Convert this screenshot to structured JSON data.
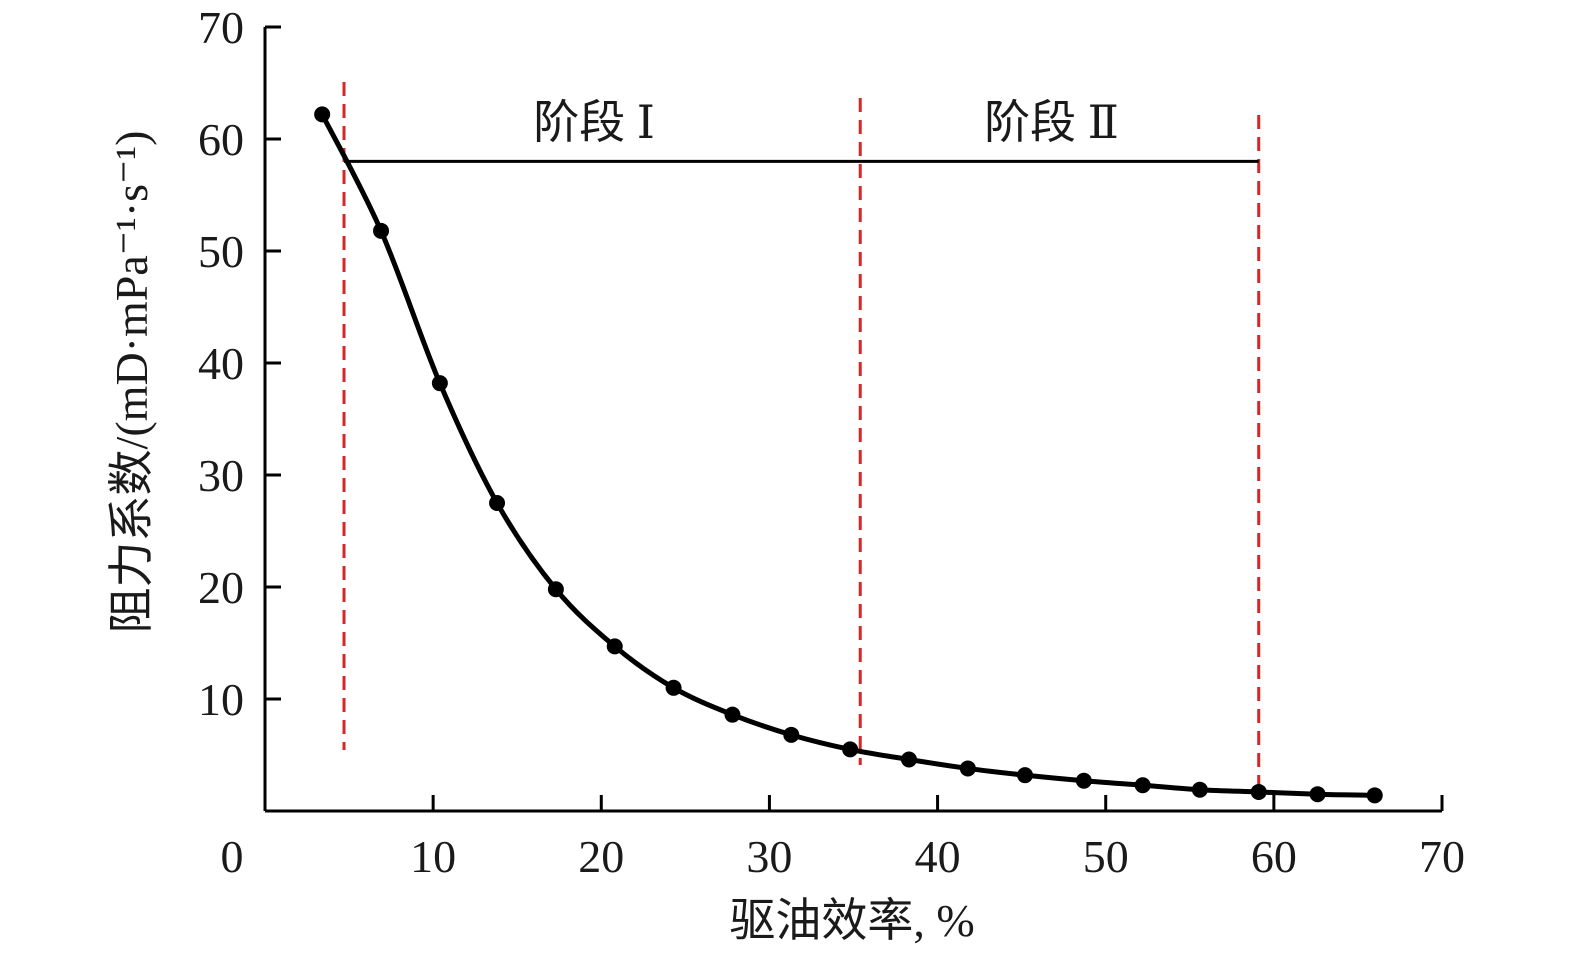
{
  "chart_data": {
    "type": "line",
    "title": "",
    "xlabel": "驱油效率, %",
    "ylabel": "阻力系数/(mD·mPa⁻¹·s⁻¹)",
    "xlim": [
      0,
      70
    ],
    "ylim": [
      0,
      70
    ],
    "x_ticks": [
      "0",
      "10",
      "20",
      "30",
      "40",
      "50",
      "60",
      "70"
    ],
    "y_ticks": [
      "10",
      "20",
      "30",
      "40",
      "50",
      "60",
      "70"
    ],
    "grid": false,
    "series": [
      {
        "x": [
          3.4,
          6.9,
          10.4,
          13.8,
          17.3,
          20.8,
          24.3,
          27.8,
          31.3,
          34.8,
          38.3,
          41.8,
          45.2,
          48.7,
          52.2,
          55.6,
          59.1,
          62.6,
          66.0
        ],
        "values": [
          62.2,
          51.8,
          38.2,
          27.5,
          19.8,
          14.7,
          11.0,
          8.6,
          6.8,
          5.5,
          4.6,
          3.8,
          3.2,
          2.7,
          2.3,
          1.9,
          1.7,
          1.5,
          1.4
        ],
        "color": "#000000"
      }
    ],
    "annotations": {
      "dashed_lines_x": [
        4.7,
        35.4,
        59.1
      ],
      "dashed_line_color": "#d62728",
      "stage_bar": {
        "y": 58,
        "x_start": 4.7,
        "x_end": 59.1
      },
      "stages": [
        {
          "label": "阶段 Ⅰ",
          "x_start": 4.7,
          "x_end": 35.4
        },
        {
          "label": "阶段 Ⅱ",
          "x_start": 35.4,
          "x_end": 59.1
        }
      ]
    }
  }
}
